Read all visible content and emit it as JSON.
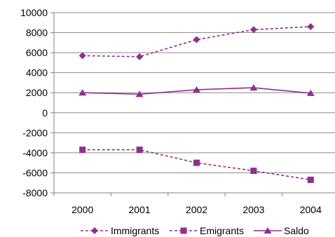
{
  "chart_data": {
    "type": "line",
    "categories": [
      "2000",
      "2001",
      "2002",
      "2003",
      "2004"
    ],
    "ylim": [
      -8000,
      10000
    ],
    "yticks": [
      10000,
      8000,
      6000,
      4000,
      2000,
      0,
      -2000,
      -4000,
      -6000,
      -8000
    ],
    "grid": "horizontal",
    "legend_position": "bottom",
    "series_color": "#8e2f8e",
    "series": [
      {
        "name": "Immigrants",
        "values": [
          5700,
          5600,
          7300,
          8300,
          8600
        ],
        "marker": "diamond",
        "line": "dashed"
      },
      {
        "name": "Emigrants",
        "values": [
          -3700,
          -3700,
          -5000,
          -5800,
          -6700
        ],
        "marker": "square",
        "line": "dashed"
      },
      {
        "name": "Saldo",
        "values": [
          2000,
          1850,
          2300,
          2500,
          1950
        ],
        "marker": "triangle",
        "line": "solid"
      }
    ]
  }
}
